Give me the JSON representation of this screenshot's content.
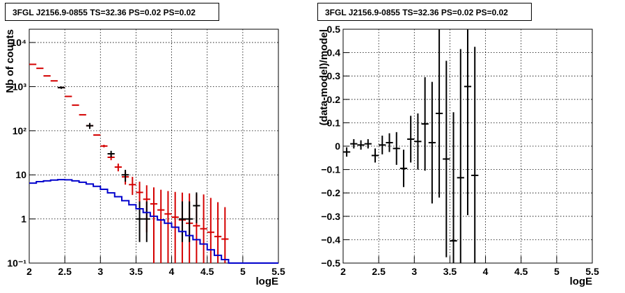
{
  "chart_data": [
    {
      "type": "line",
      "title": "3FGL J2156.9-0855 TS=32.36 PS=0.02 PS=0.02",
      "xlabel": "logE",
      "ylabel": "Nb of counts",
      "xlim": [
        2,
        5.5
      ],
      "ylim": [
        0.1,
        20000
      ],
      "yscale": "log",
      "grid": true,
      "x_ticks": [
        2,
        2.5,
        3,
        3.5,
        4,
        4.5,
        5,
        5.5
      ],
      "x_tick_labels": [
        "2",
        "2.5",
        "3",
        "3.5",
        "4",
        "4.5",
        "5",
        "5.5"
      ],
      "y_ticks": [
        0.1,
        1,
        10,
        100,
        1000,
        10000
      ],
      "y_tick_labels": [
        "10⁻¹",
        "1",
        "10",
        "10²",
        "10³",
        "10⁴"
      ],
      "colors": {
        "model": "#d40000",
        "data": "#000000",
        "component": "#0000cc"
      },
      "series": [
        {
          "role": "model",
          "x": [
            2.05,
            2.15,
            2.25,
            2.35,
            2.45,
            2.55,
            2.65,
            2.75,
            2.85,
            2.95,
            3.05,
            3.15,
            3.25,
            3.35,
            3.45,
            3.55,
            3.65,
            3.75,
            3.85,
            3.95,
            4.05,
            4.15,
            4.25,
            4.35,
            4.45,
            4.55,
            4.65,
            4.75
          ],
          "y": [
            3200,
            2600,
            1750,
            1350,
            950,
            600,
            380,
            230,
            130,
            80,
            45,
            25,
            15,
            9,
            6,
            4,
            2.8,
            2.2,
            1.6,
            1.3,
            1.1,
            0.95,
            0.8,
            0.7,
            0.6,
            0.5,
            0.4,
            0.35
          ],
          "err_low": [
            0,
            0,
            0,
            0,
            0,
            0,
            0,
            0,
            0,
            0,
            3,
            3.5,
            3,
            3,
            2.5,
            2.5,
            2.3,
            2.1,
            1.5,
            1.2,
            1.0,
            0.9,
            0.75,
            0.65,
            0.55,
            0.45,
            0.35,
            0.3
          ],
          "err_high": [
            0,
            0,
            0,
            0,
            0,
            0,
            0,
            0,
            0,
            0,
            3,
            3.5,
            3,
            3,
            3,
            3,
            3,
            3,
            3,
            3,
            3,
            3,
            3,
            3,
            3,
            2.5,
            2,
            1.5
          ]
        },
        {
          "role": "data",
          "x": [
            2.45,
            2.85,
            3.15,
            3.35,
            3.55,
            3.65,
            4.15,
            4.25,
            4.35
          ],
          "y": [
            950,
            130,
            30,
            10,
            1,
            1,
            1,
            1,
            2
          ],
          "err_low": [
            60,
            20,
            5,
            3,
            0.7,
            0.7,
            0.7,
            0.7,
            1.2
          ],
          "err_high": [
            60,
            20,
            5,
            3,
            1.5,
            1.5,
            1.5,
            1.5,
            2
          ]
        },
        {
          "role": "component",
          "x": [
            2.0,
            2.1,
            2.2,
            2.3,
            2.4,
            2.5,
            2.6,
            2.7,
            2.8,
            2.9,
            3.0,
            3.1,
            3.2,
            3.3,
            3.4,
            3.5,
            3.6,
            3.7,
            3.8,
            3.9,
            4.0,
            4.1,
            4.2,
            4.3,
            4.4,
            4.5,
            4.6,
            4.7,
            4.8,
            4.9,
            5.0,
            5.1,
            5.2,
            5.3,
            5.4,
            5.5
          ],
          "y": [
            6.5,
            7,
            7.3,
            7.6,
            7.8,
            7.7,
            7.3,
            6.8,
            6.2,
            5.5,
            4.7,
            3.9,
            3.2,
            2.6,
            2.1,
            1.7,
            1.4,
            1.15,
            0.95,
            0.8,
            0.65,
            0.52,
            0.42,
            0.34,
            0.27,
            0.2,
            0.15,
            0.12,
            0.1,
            0.1,
            0.1,
            0.1,
            0.1,
            0.1,
            0.1,
            0.1
          ]
        }
      ]
    },
    {
      "type": "scatter",
      "title": "3FGL J2156.9-0855 TS=32.36 PS=0.02 PS=0.02",
      "xlabel": "logE",
      "ylabel": "(data-model)/model",
      "xlim": [
        2,
        5.5
      ],
      "ylim": [
        -0.5,
        0.5
      ],
      "grid": true,
      "x_ticks": [
        2,
        2.5,
        3,
        3.5,
        4,
        4.5,
        5,
        5.5
      ],
      "x_tick_labels": [
        "2",
        "2.5",
        "3",
        "3.5",
        "4",
        "4.5",
        "5",
        "5.5"
      ],
      "y_ticks": [
        -0.5,
        -0.4,
        -0.3,
        -0.2,
        -0.1,
        0,
        0.1,
        0.2,
        0.3,
        0.4,
        0.5
      ],
      "y_tick_labels": [
        "−0.5",
        "−0.4",
        "−0.3",
        "−0.2",
        "−0.1",
        "0",
        "0.1",
        "0.2",
        "0.3",
        "0.4",
        "0.5"
      ],
      "series": [
        {
          "x": [
            2.05,
            2.15,
            2.25,
            2.35,
            2.45,
            2.55,
            2.65,
            2.75,
            2.85,
            2.95,
            3.05,
            3.15,
            3.25,
            3.35,
            3.45,
            3.55,
            3.65,
            3.75,
            3.85
          ],
          "y": [
            -0.025,
            0.01,
            0.005,
            0.01,
            -0.04,
            0.005,
            0.015,
            -0.01,
            -0.095,
            0.03,
            0.02,
            0.095,
            0.015,
            0.14,
            -0.055,
            -0.405,
            -0.135,
            0.255,
            -0.125
          ],
          "err": [
            0.02,
            0.02,
            0.02,
            0.02,
            0.03,
            0.04,
            0.04,
            0.07,
            0.08,
            0.1,
            0.12,
            0.2,
            0.26,
            0.36,
            0.42,
            0.55,
            0.55,
            0.55,
            0.55
          ]
        }
      ]
    }
  ]
}
